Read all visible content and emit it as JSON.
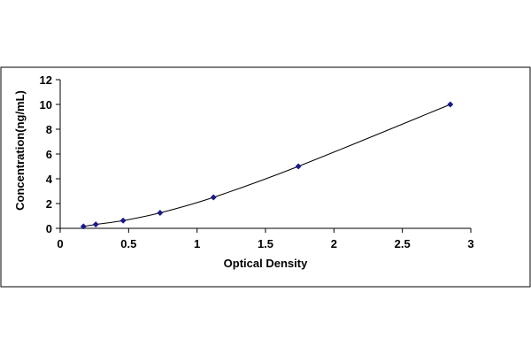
{
  "chart_data": {
    "type": "scatter",
    "title": "",
    "xlabel": "Optical Density",
    "ylabel": "Concentration(ng/mL)",
    "xlim": [
      0,
      3
    ],
    "ylim": [
      0,
      12
    ],
    "x_ticks": [
      "0",
      "0.5",
      "1",
      "1.5",
      "2",
      "2.5",
      "3"
    ],
    "y_ticks": [
      "0",
      "2",
      "4",
      "6",
      "8",
      "10",
      "12"
    ],
    "grid": false,
    "legend": "none",
    "trendline": "smooth curve through points",
    "series": [
      {
        "color": "#1a1a8c",
        "x": [
          0.17,
          0.26,
          0.46,
          0.73,
          1.12,
          1.74,
          2.85
        ],
        "y": [
          0.156,
          0.312,
          0.625,
          1.25,
          2.5,
          5,
          10
        ]
      }
    ],
    "colors": {
      "frame": "#000000",
      "axis": "#000000",
      "curve": "#000000",
      "marker": "#1a1a8c"
    }
  }
}
